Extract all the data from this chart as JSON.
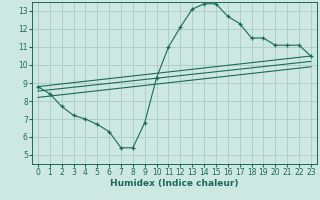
{
  "title": "",
  "xlabel": "Humidex (Indice chaleur)",
  "ylabel": "",
  "bg_color": "#cce8e0",
  "grid_color": "#aaccc4",
  "line_color": "#1a6a5a",
  "xlim": [
    -0.5,
    23.5
  ],
  "ylim": [
    4.5,
    13.5
  ],
  "xticks": [
    0,
    1,
    2,
    3,
    4,
    5,
    6,
    7,
    8,
    9,
    10,
    11,
    12,
    13,
    14,
    15,
    16,
    17,
    18,
    19,
    20,
    21,
    22,
    23
  ],
  "yticks": [
    5,
    6,
    7,
    8,
    9,
    10,
    11,
    12,
    13
  ],
  "curve1_x": [
    0,
    1,
    2,
    3,
    4,
    5,
    6,
    7,
    8,
    9,
    10,
    11,
    12,
    13,
    14,
    15,
    16,
    17,
    18,
    19,
    20,
    21,
    22,
    23
  ],
  "curve1_y": [
    8.8,
    8.4,
    7.7,
    7.2,
    7.0,
    6.7,
    6.3,
    5.4,
    5.4,
    6.8,
    9.3,
    11.0,
    12.1,
    13.1,
    13.4,
    13.4,
    12.7,
    12.3,
    11.5,
    11.5,
    11.1,
    11.1,
    11.1,
    10.5
  ],
  "line2_x": [
    0,
    23
  ],
  "line2_y": [
    8.8,
    10.5
  ],
  "line3_x": [
    0,
    23
  ],
  "line3_y": [
    8.55,
    10.2
  ],
  "line4_x": [
    0,
    23
  ],
  "line4_y": [
    8.2,
    9.9
  ]
}
